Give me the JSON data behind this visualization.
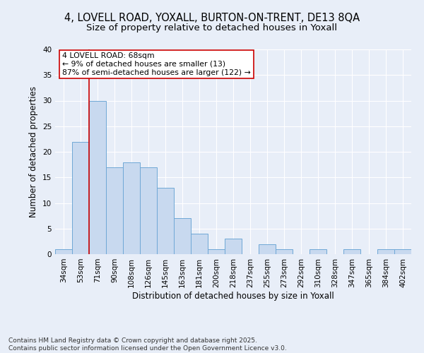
{
  "title_line1": "4, LOVELL ROAD, YOXALL, BURTON-ON-TRENT, DE13 8QA",
  "title_line2": "Size of property relative to detached houses in Yoxall",
  "xlabel": "Distribution of detached houses by size in Yoxall",
  "ylabel": "Number of detached properties",
  "footer": "Contains HM Land Registry data © Crown copyright and database right 2025.\nContains public sector information licensed under the Open Government Licence v3.0.",
  "bar_labels": [
    "34sqm",
    "53sqm",
    "71sqm",
    "90sqm",
    "108sqm",
    "126sqm",
    "145sqm",
    "163sqm",
    "181sqm",
    "200sqm",
    "218sqm",
    "237sqm",
    "255sqm",
    "273sqm",
    "292sqm",
    "310sqm",
    "328sqm",
    "347sqm",
    "365sqm",
    "384sqm",
    "402sqm"
  ],
  "bar_values": [
    1,
    22,
    30,
    17,
    18,
    17,
    13,
    7,
    4,
    1,
    3,
    0,
    2,
    1,
    0,
    1,
    0,
    1,
    0,
    1,
    1
  ],
  "bar_color": "#C8D9EF",
  "bar_edge_color": "#6FA8D6",
  "annotation_text": "4 LOVELL ROAD: 68sqm\n← 9% of detached houses are smaller (13)\n87% of semi-detached houses are larger (122) →",
  "annotation_box_color": "#ffffff",
  "annotation_box_edge": "#cc0000",
  "vline_x": 1.5,
  "vline_color": "#cc0000",
  "ylim": [
    0,
    40
  ],
  "yticks": [
    0,
    5,
    10,
    15,
    20,
    25,
    30,
    35,
    40
  ],
  "bg_color": "#E8EEF8",
  "plot_bg_color": "#E8EEF8",
  "grid_color": "#ffffff",
  "title_fontsize": 10.5,
  "subtitle_fontsize": 9.5,
  "axis_label_fontsize": 8.5,
  "tick_fontsize": 7.5,
  "annotation_fontsize": 7.8,
  "footer_fontsize": 6.5
}
